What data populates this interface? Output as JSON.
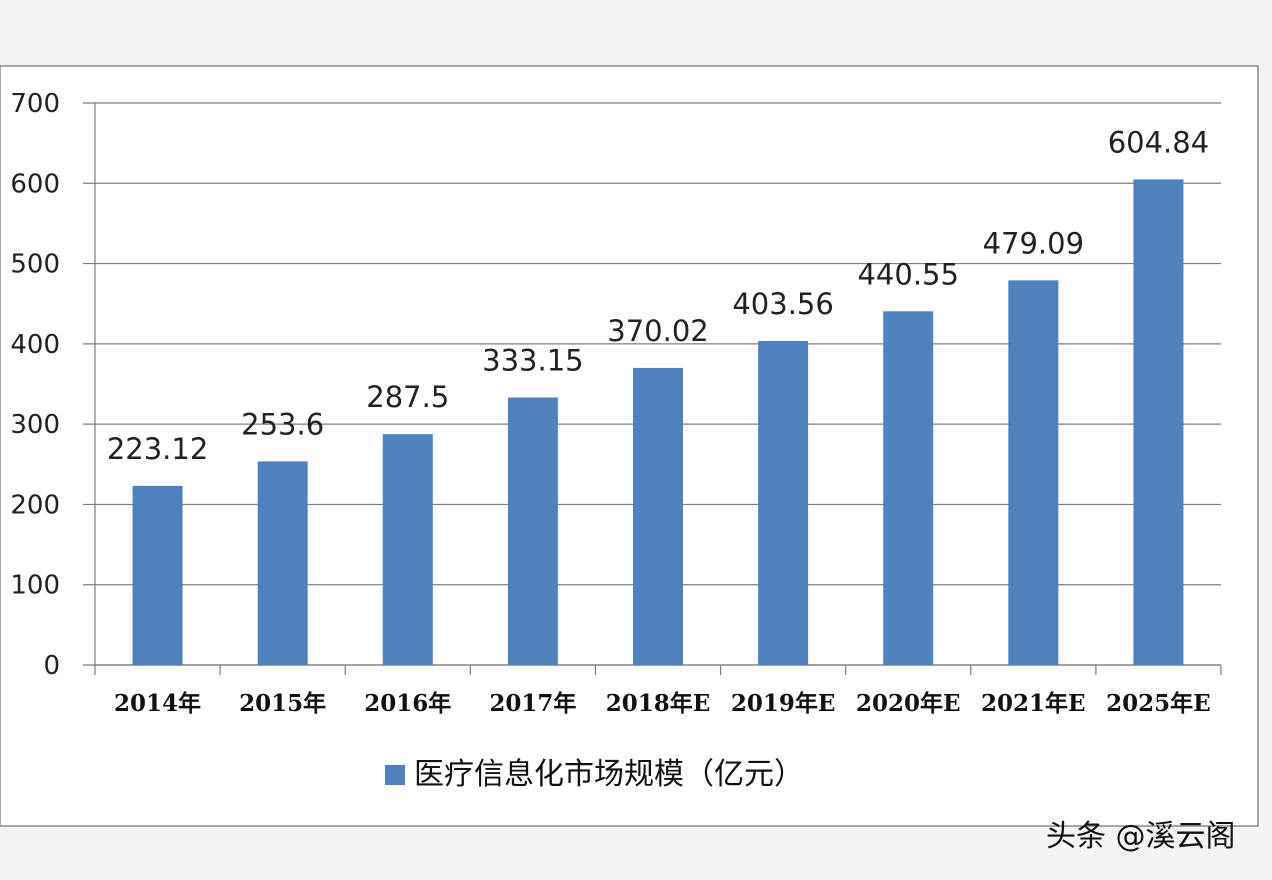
{
  "chart_data": {
    "type": "bar",
    "categories": [
      "2014年",
      "2015年",
      "2016年",
      "2017年",
      "2018年E",
      "2019年E",
      "2020年E",
      "2021年E",
      "2025年E"
    ],
    "series": [
      {
        "name": "医疗信息化市场规模（亿元）",
        "values": [
          223.12,
          253.6,
          287.5,
          333.15,
          370.02,
          403.56,
          440.55,
          479.09,
          604.84
        ],
        "labels": [
          "223.12",
          "253.6",
          "287.5",
          "333.15",
          "370.02",
          "403.56",
          "440.55",
          "479.09",
          "604.84"
        ],
        "color": "#4f81bd"
      }
    ],
    "ylim": [
      0,
      700
    ],
    "yticks": [
      0,
      100,
      200,
      300,
      400,
      500,
      600,
      700
    ],
    "grid": true,
    "legend": "bottom"
  },
  "watermark": "头条 @溪云阁"
}
